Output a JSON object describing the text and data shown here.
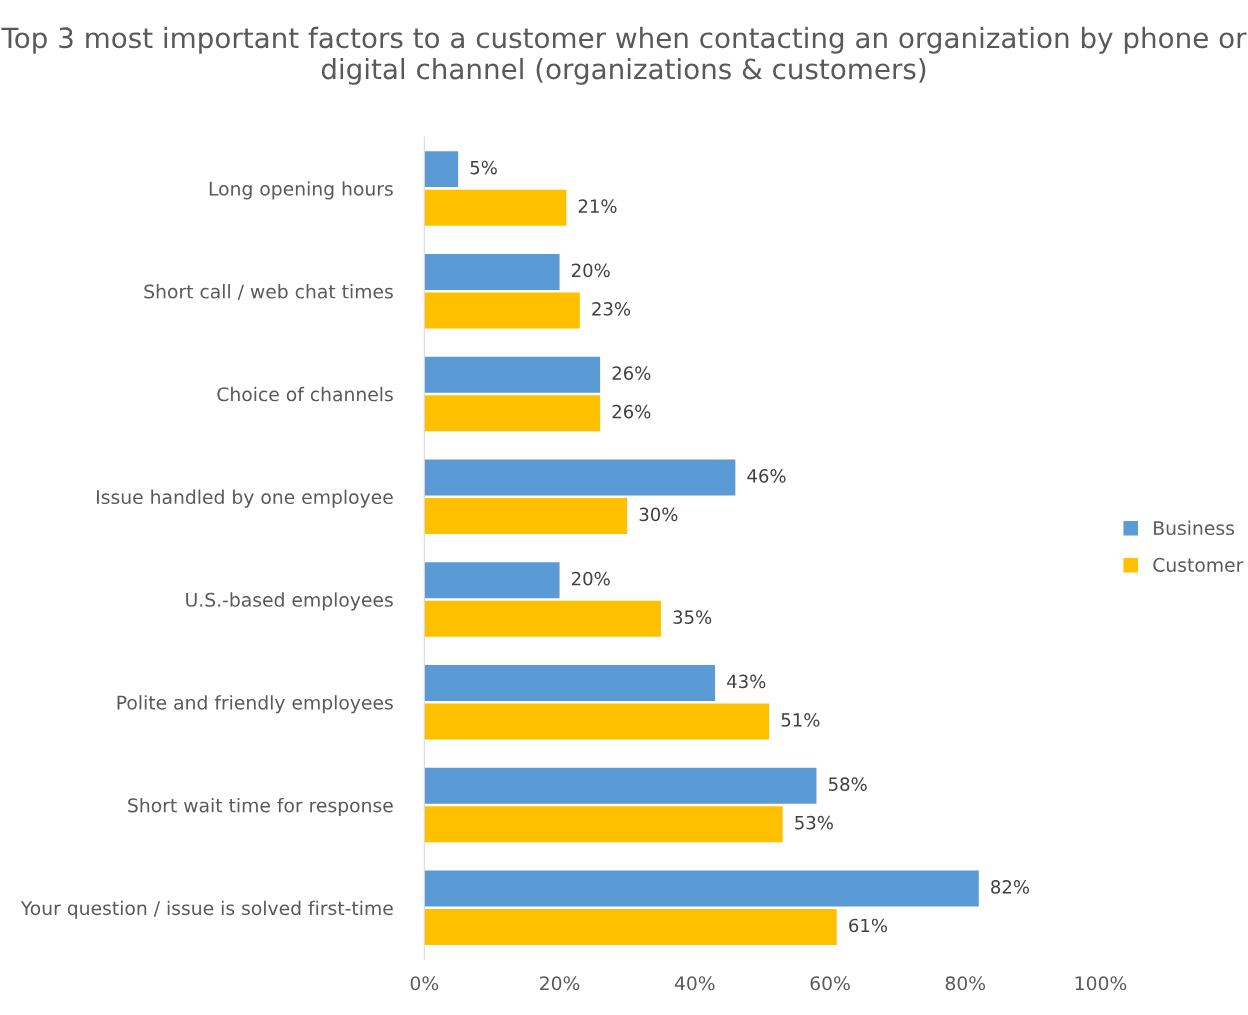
{
  "chart_data": {
    "type": "bar",
    "orientation": "horizontal",
    "title": "Top 3 most important factors to a customer when contacting an organization by phone or digital channel (organizations & customers)",
    "categories": [
      "Long opening hours",
      "Short call / web chat times",
      "Choice of channels",
      "Issue handled by one employee",
      "U.S.-based employees",
      "Polite and friendly employees",
      "Short wait time for response",
      "Your question / issue is solved first-time"
    ],
    "series": [
      {
        "name": "Business",
        "color": "#5b9bd5",
        "values": [
          5,
          20,
          26,
          46,
          20,
          43,
          58,
          82
        ],
        "value_labels": [
          "5%",
          "20%",
          "26%",
          "46%",
          "20%",
          "43%",
          "58%",
          "82%"
        ]
      },
      {
        "name": "Customer",
        "color": "#ffc000",
        "values": [
          21,
          23,
          26,
          30,
          35,
          51,
          53,
          61
        ],
        "value_labels": [
          "21%",
          "23%",
          "26%",
          "30%",
          "35%",
          "51%",
          "53%",
          "61%"
        ]
      }
    ],
    "xlim": [
      0,
      100
    ],
    "xticks": [
      {
        "value": 0,
        "label": "0%"
      },
      {
        "value": 20,
        "label": "20%"
      },
      {
        "value": 40,
        "label": "40%"
      },
      {
        "value": 60,
        "label": "60%"
      },
      {
        "value": 80,
        "label": "80%"
      },
      {
        "value": 100,
        "label": "100%"
      }
    ],
    "grid": false,
    "legend": "right"
  }
}
